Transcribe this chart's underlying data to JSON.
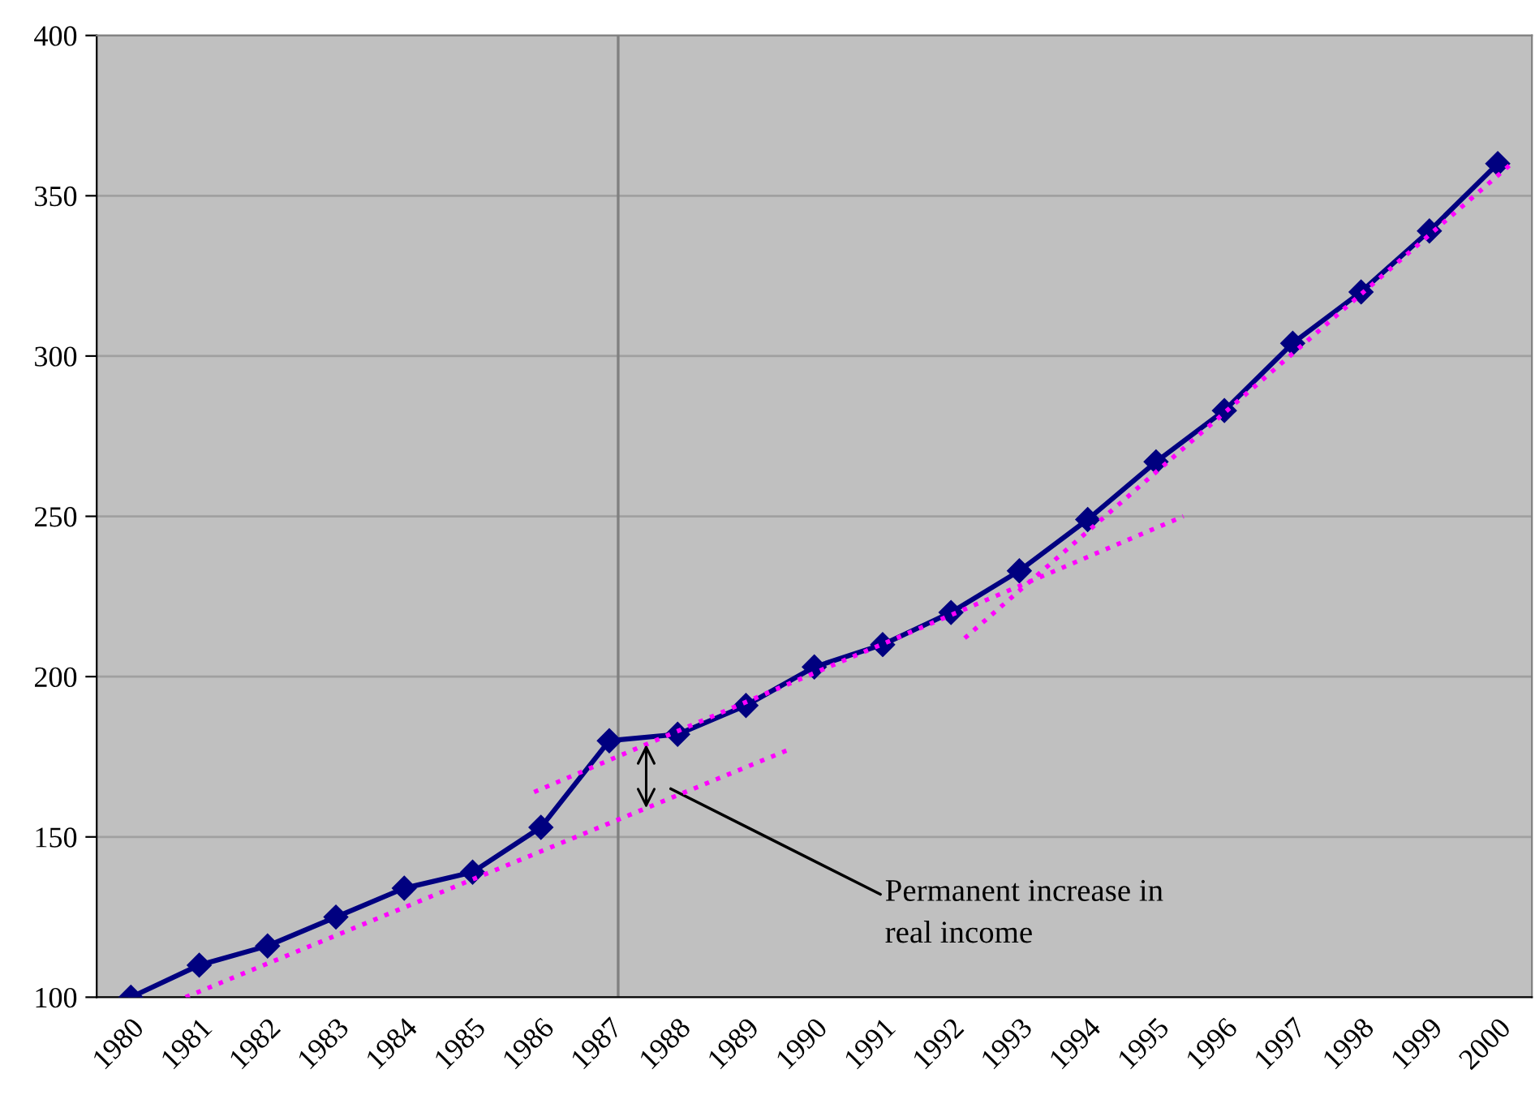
{
  "chart_data": {
    "type": "line",
    "x": [
      1980,
      1981,
      1982,
      1983,
      1984,
      1985,
      1986,
      1987,
      1988,
      1989,
      1990,
      1991,
      1992,
      1993,
      1994,
      1995,
      1996,
      1997,
      1998,
      1999,
      2000
    ],
    "xlim": [
      1979.5,
      2000.5
    ],
    "xticks": [
      1980,
      1981,
      1982,
      1983,
      1984,
      1985,
      1986,
      1987,
      1988,
      1989,
      1990,
      1991,
      1992,
      1993,
      1994,
      1995,
      1996,
      1997,
      1998,
      1999,
      2000
    ],
    "ylim": [
      100,
      400
    ],
    "yticks": [
      100,
      150,
      200,
      250,
      300,
      350,
      400
    ],
    "grid": "y",
    "legend": false,
    "marker": "diamond",
    "line_style": "solid",
    "series": [
      {
        "color": "#000080",
        "values": [
          100,
          110,
          116,
          125,
          134,
          139,
          153,
          180,
          182,
          191,
          203,
          210,
          220,
          233,
          249,
          267,
          283,
          304,
          320,
          339,
          360
        ]
      },
      {
        "type": "line",
        "color": "#ff00ff",
        "marker": "none",
        "line_style": "dotted",
        "x": [
          1980.8,
          1989.6
        ],
        "values": [
          100,
          177
        ]
      },
      {
        "type": "line",
        "color": "#ff00ff",
        "marker": "none",
        "line_style": "dotted",
        "x": [
          1985.9,
          1995.4
        ],
        "values": [
          164,
          250
        ]
      },
      {
        "type": "line",
        "color": "#ff00ff",
        "marker": "none",
        "line_style": "dotted",
        "x": [
          1992.2,
          2000.2
        ],
        "values": [
          212,
          360
        ]
      }
    ],
    "ref_lines": [
      {
        "axis": "x",
        "value": 1987.13,
        "color": "#808080"
      }
    ],
    "annotations": [
      {
        "text": "Permanent increase in\nreal income",
        "x": 1987.9,
        "y": 165
      }
    ]
  }
}
